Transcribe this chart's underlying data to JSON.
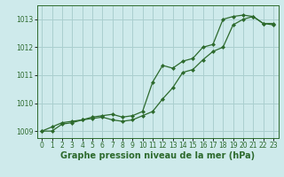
{
  "x": [
    0,
    1,
    2,
    3,
    4,
    5,
    6,
    7,
    8,
    9,
    10,
    11,
    12,
    13,
    14,
    15,
    16,
    17,
    18,
    19,
    20,
    21,
    22,
    23
  ],
  "line1": [
    1009.0,
    1009.15,
    1009.3,
    1009.35,
    1009.4,
    1009.5,
    1009.55,
    1009.6,
    1009.5,
    1009.55,
    1009.7,
    1010.75,
    1011.35,
    1011.25,
    1011.5,
    1011.6,
    1012.0,
    1012.1,
    1013.0,
    1013.1,
    1013.15,
    1013.1,
    1012.85,
    1012.85
  ],
  "line2": [
    1009.0,
    1009.0,
    1009.25,
    1009.3,
    1009.4,
    1009.45,
    1009.5,
    1009.4,
    1009.35,
    1009.4,
    1009.55,
    1009.7,
    1010.15,
    1010.55,
    1011.1,
    1011.2,
    1011.55,
    1011.85,
    1012.0,
    1012.8,
    1013.0,
    1013.1,
    1012.85,
    1012.8
  ],
  "ylim_min": 1008.75,
  "ylim_max": 1013.5,
  "yticks": [
    1009,
    1010,
    1011,
    1012,
    1013
  ],
  "xticks": [
    0,
    1,
    2,
    3,
    4,
    5,
    6,
    7,
    8,
    9,
    10,
    11,
    12,
    13,
    14,
    15,
    16,
    17,
    18,
    19,
    20,
    21,
    22,
    23
  ],
  "line_color": "#2d6a2d",
  "bg_color": "#ceeaeb",
  "grid_color": "#aacfcf",
  "xlabel": "Graphe pression niveau de la mer (hPa)",
  "xlabel_fontsize": 7,
  "tick_fontsize": 5.5,
  "marker": "D",
  "markersize": 2.0,
  "linewidth": 0.9
}
